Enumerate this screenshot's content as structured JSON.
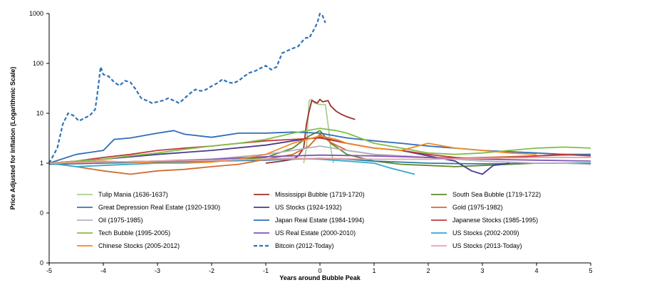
{
  "chart_data": {
    "type": "line",
    "title": "",
    "xlabel": "Years around Bubble Peak",
    "ylabel": "Price Adjusted for Inflation (Logarithmic Scale)",
    "y_scale": "log",
    "xlim": [
      -5,
      5
    ],
    "ylim": [
      0.01,
      1000
    ],
    "x_ticks": [
      -5,
      -4,
      -3,
      -2,
      -1,
      0,
      1,
      2,
      3,
      4,
      5
    ],
    "y_ticks": [
      {
        "value": 0.01,
        "label": "0"
      },
      {
        "value": 0.1,
        "label": "0"
      },
      {
        "value": 1,
        "label": "1"
      },
      {
        "value": 10,
        "label": "10"
      },
      {
        "value": 100,
        "label": "100"
      },
      {
        "value": 1000,
        "label": "1000"
      }
    ],
    "grid": false,
    "legend_position": "bottom inside plot, 3 columns",
    "series": [
      {
        "name": "Tulip Mania (1636-1637)",
        "color": "#a9d18e",
        "dash": false,
        "x": [
          -0.3,
          -0.25,
          -0.22,
          -0.2,
          -0.15,
          -0.1,
          0,
          0.1,
          0.15,
          0.2,
          0.25
        ],
        "y": [
          1,
          2,
          8,
          18,
          19,
          16,
          15,
          15,
          6,
          2,
          1
        ]
      },
      {
        "name": "Mississippi Bubble (1719-1720)",
        "color": "#a32b2b",
        "dash": false,
        "x": [
          -1,
          -0.7,
          -0.5,
          -0.4,
          -0.3,
          -0.25,
          -0.2,
          -0.15,
          -0.05,
          0,
          0.05,
          0.15,
          0.2,
          0.3,
          0.4,
          0.5,
          0.65
        ],
        "y": [
          1,
          1.1,
          1.2,
          1.4,
          2,
          6,
          11,
          18,
          16,
          19,
          17,
          18,
          14,
          11,
          9.5,
          8.5,
          7.5
        ]
      },
      {
        "name": "South Sea Bubble (1719-1722)",
        "color": "#5e8a2a",
        "dash": false,
        "x": [
          -5,
          -4,
          -3,
          -2,
          -1.5,
          -1,
          -0.5,
          -0.2,
          0,
          0.2,
          0.5,
          1,
          1.5,
          2,
          2.5,
          3,
          3.5,
          4,
          4.5,
          5
        ],
        "y": [
          1,
          1.05,
          1.1,
          1.1,
          1.2,
          1.3,
          2,
          3.5,
          4.5,
          2.5,
          1.5,
          1.1,
          0.95,
          0.9,
          0.85,
          0.9,
          0.95,
          1,
          1,
          1
        ]
      },
      {
        "name": "Great Depression Real Estate (1920-1930)",
        "color": "#2e7c9c",
        "dash": false,
        "x": [
          -5,
          -4,
          -3,
          -2,
          -1,
          -0.5,
          0,
          0.5,
          1,
          1.5,
          2,
          2.5,
          3,
          3.5,
          4,
          4.5,
          5
        ],
        "y": [
          0.95,
          1,
          1.05,
          1.1,
          1.15,
          1.2,
          1.25,
          1.2,
          1.1,
          1.05,
          1,
          0.98,
          0.97,
          0.98,
          1,
          1,
          1
        ]
      },
      {
        "name": "US Stocks (1924-1932)",
        "color": "#4b3a8c",
        "dash": false,
        "x": [
          -5,
          -4,
          -3,
          -2,
          -1,
          -0.5,
          0,
          0.5,
          1,
          1.5,
          2,
          2.5,
          2.8,
          3,
          3.2,
          3.5
        ],
        "y": [
          1,
          1.2,
          1.5,
          1.8,
          2.3,
          2.8,
          3.3,
          2.5,
          2,
          1.8,
          1.4,
          1.1,
          0.7,
          0.6,
          0.9,
          1
        ]
      },
      {
        "name": "Gold (1975-1982)",
        "color": "#d36b2d",
        "dash": false,
        "x": [
          -5,
          -4.5,
          -4,
          -3.5,
          -3,
          -2.5,
          -2,
          -1.5,
          -1,
          -0.5,
          -0.2,
          0,
          0.2,
          0.5,
          1,
          1.5,
          2,
          2.5,
          3,
          3.5,
          4,
          4.5,
          5
        ],
        "y": [
          1,
          0.85,
          0.7,
          0.6,
          0.7,
          0.75,
          0.85,
          0.95,
          1.2,
          1.5,
          2.2,
          3.8,
          2.6,
          1.8,
          1.5,
          1.4,
          1.3,
          1.25,
          1.3,
          1.35,
          1.4,
          1.45,
          1.5
        ]
      },
      {
        "name": "Oil (1975-1985)",
        "color": "#b2b2c4",
        "dash": false,
        "x": [
          -5,
          -4,
          -3,
          -2,
          -1,
          -0.5,
          0,
          0.5,
          1,
          1.5,
          2,
          2.5,
          3,
          3.5,
          4,
          4.5,
          5
        ],
        "y": [
          1,
          1.05,
          1.1,
          1.2,
          1.5,
          1.8,
          2.2,
          1.8,
          1.5,
          1.4,
          1.3,
          1.2,
          1.1,
          1.05,
          1,
          1,
          0.95
        ]
      },
      {
        "name": "Japan Real Estate (1984-1994)",
        "color": "#2f6db5",
        "dash": false,
        "x": [
          -5,
          -4.5,
          -4,
          -3.8,
          -3.5,
          -3,
          -2.7,
          -2.5,
          -2,
          -1.5,
          -1,
          -0.5,
          0,
          0.5,
          1,
          1.5,
          2,
          2.5,
          3,
          3.5,
          4,
          4.5,
          5
        ],
        "y": [
          1,
          1.5,
          1.8,
          3,
          3.2,
          4,
          4.5,
          3.8,
          3.3,
          4,
          4,
          4.2,
          4,
          3.2,
          2.8,
          2.5,
          2.2,
          2,
          1.8,
          1.7,
          1.6,
          1.5,
          1.5
        ]
      },
      {
        "name": "Japanese Stocks (1985-1995)",
        "color": "#c0393b",
        "dash": false,
        "x": [
          -5,
          -4.5,
          -4,
          -3.5,
          -3,
          -2.5,
          -2,
          -1.5,
          -1,
          -0.5,
          0,
          0.5,
          1,
          1.5,
          2,
          2.5,
          3,
          3.5,
          4,
          4.5,
          5
        ],
        "y": [
          1,
          1.1,
          1.3,
          1.5,
          1.8,
          2,
          2.2,
          2.5,
          2.8,
          3,
          3.2,
          2.5,
          2,
          1.8,
          1.5,
          1.3,
          1.2,
          1.3,
          1.4,
          1.5,
          1.4
        ]
      },
      {
        "name": "Tech Bubble (1995-2005)",
        "color": "#7fbf4a",
        "dash": false,
        "x": [
          -5,
          -4.5,
          -4,
          -3.5,
          -3,
          -2.5,
          -2,
          -1.5,
          -1,
          -0.5,
          0,
          0.3,
          0.5,
          1,
          1.5,
          2,
          2.5,
          3,
          3.5,
          4,
          4.5,
          5
        ],
        "y": [
          1,
          1.1,
          1.2,
          1.4,
          1.6,
          1.9,
          2.2,
          2.5,
          3,
          4,
          5,
          4.5,
          4,
          2.5,
          2,
          1.6,
          1.5,
          1.6,
          1.8,
          2,
          2.1,
          2
        ]
      },
      {
        "name": "US Real Estate (2000-2010)",
        "color": "#7f56b8",
        "dash": false,
        "x": [
          -5,
          -4,
          -3,
          -2,
          -1,
          0,
          1,
          2,
          3,
          4,
          5
        ],
        "y": [
          1,
          1.05,
          1.1,
          1.2,
          1.35,
          1.45,
          1.4,
          1.3,
          1.2,
          1.15,
          1.1
        ]
      },
      {
        "name": "US Stocks (2002-2009)",
        "color": "#33a8cf",
        "dash": false,
        "x": [
          -5,
          -4.5,
          -4,
          -3.5,
          -3,
          -2.5,
          -2,
          -1.5,
          -1,
          -0.5,
          0,
          0.5,
          1,
          1.3,
          1.5,
          1.75
        ],
        "y": [
          1,
          0.85,
          0.9,
          0.95,
          1,
          1.05,
          1.1,
          1.15,
          1.2,
          1.25,
          1.2,
          1.1,
          1,
          0.8,
          0.7,
          0.6
        ]
      },
      {
        "name": "Chinese Stocks (2005-2012)",
        "color": "#ee8a2a",
        "dash": false,
        "x": [
          -5,
          -4.5,
          -4,
          -3.5,
          -3,
          -2.5,
          -2,
          -1.5,
          -1,
          -0.5,
          0,
          0.3,
          0.5,
          1,
          1.5,
          2,
          2.5,
          3,
          3.5,
          4
        ],
        "y": [
          1,
          1.05,
          1.1,
          1.05,
          1,
          1,
          1.05,
          1.2,
          1.5,
          2.5,
          3.5,
          3,
          2.5,
          2,
          1.8,
          2.5,
          2,
          1.8,
          1.6,
          1.5
        ]
      },
      {
        "name": "Bitcoin (2012-Today)",
        "color": "#2e73b8",
        "dash": true,
        "x": [
          -5,
          -4.85,
          -4.75,
          -4.65,
          -4.55,
          -4.45,
          -4.35,
          -4.25,
          -4.15,
          -4.1,
          -4.05,
          -4.0,
          -3.9,
          -3.8,
          -3.7,
          -3.6,
          -3.5,
          -3.4,
          -3.3,
          -3.2,
          -3.1,
          -3.0,
          -2.9,
          -2.8,
          -2.7,
          -2.6,
          -2.5,
          -2.4,
          -2.3,
          -2.2,
          -2.1,
          -2.0,
          -1.9,
          -1.8,
          -1.7,
          -1.6,
          -1.5,
          -1.4,
          -1.3,
          -1.2,
          -1.1,
          -1.0,
          -0.9,
          -0.8,
          -0.7,
          -0.6,
          -0.5,
          -0.4,
          -0.3,
          -0.25,
          -0.2,
          -0.15,
          -0.1,
          -0.05,
          0.0,
          0.05,
          0.1
        ],
        "y": [
          1,
          2,
          6,
          10,
          9,
          7,
          8,
          9,
          12,
          30,
          85,
          60,
          55,
          42,
          36,
          45,
          42,
          30,
          20,
          18,
          16,
          17,
          18,
          20,
          18,
          16,
          20,
          25,
          30,
          28,
          30,
          35,
          40,
          48,
          42,
          40,
          45,
          55,
          65,
          70,
          80,
          90,
          75,
          85,
          160,
          180,
          200,
          220,
          300,
          330,
          320,
          400,
          500,
          650,
          1000,
          900,
          650
        ]
      },
      {
        "name": "US Stocks (2013-Today)",
        "color": "#e8a0a8",
        "dash": false,
        "x": [
          -5,
          -4,
          -3,
          -2,
          -1,
          0,
          1,
          2,
          3,
          4,
          5
        ],
        "y": [
          1,
          1.05,
          1.1,
          1.15,
          1.2,
          1.25,
          1.2,
          1.2,
          1.25,
          1.3,
          1.3
        ]
      }
    ]
  }
}
